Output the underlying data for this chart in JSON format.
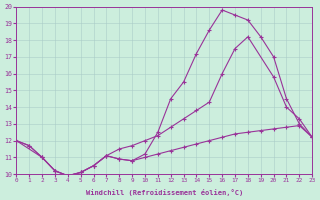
{
  "xlabel": "Windchill (Refroidissement éolien,°C)",
  "bg_color": "#cceedd",
  "line_color": "#993399",
  "xlim": [
    0,
    23
  ],
  "ylim": [
    10,
    20
  ],
  "xticks": [
    0,
    1,
    2,
    3,
    4,
    5,
    6,
    7,
    8,
    9,
    10,
    11,
    12,
    13,
    14,
    15,
    16,
    17,
    18,
    19,
    20,
    21,
    22,
    23
  ],
  "yticks": [
    10,
    11,
    12,
    13,
    14,
    15,
    16,
    17,
    18,
    19,
    20
  ],
  "line1_x": [
    0,
    1,
    2,
    3,
    4,
    5,
    6,
    7,
    8,
    9,
    10,
    11,
    12,
    13,
    14,
    15,
    16,
    17,
    18,
    19,
    20,
    21,
    22,
    23
  ],
  "line1_y": [
    12.0,
    11.7,
    11.0,
    10.2,
    9.9,
    10.1,
    10.5,
    11.1,
    10.9,
    10.8,
    11.2,
    12.5,
    14.5,
    15.5,
    17.2,
    18.6,
    19.8,
    19.5,
    19.2,
    18.2,
    17.0,
    14.5,
    13.0,
    12.2
  ],
  "line2_x": [
    0,
    2,
    3,
    4,
    5,
    6,
    7,
    8,
    9,
    10,
    11,
    12,
    13,
    14,
    15,
    16,
    17,
    18,
    20,
    21,
    22,
    23
  ],
  "line2_y": [
    12.0,
    11.0,
    10.2,
    9.9,
    10.1,
    10.5,
    11.1,
    11.5,
    11.7,
    12.0,
    12.3,
    12.8,
    13.3,
    13.8,
    14.3,
    16.0,
    17.5,
    18.2,
    15.8,
    14.0,
    13.3,
    12.2
  ],
  "line3_x": [
    0,
    1,
    2,
    3,
    4,
    5,
    6,
    7,
    8,
    9,
    10,
    11,
    12,
    13,
    14,
    15,
    16,
    17,
    18,
    19,
    20,
    21,
    22,
    23
  ],
  "line3_y": [
    12.0,
    11.7,
    11.0,
    10.2,
    9.9,
    10.1,
    10.5,
    11.1,
    10.9,
    10.8,
    11.0,
    11.2,
    11.4,
    11.6,
    11.8,
    12.0,
    12.2,
    12.4,
    12.5,
    12.6,
    12.7,
    12.8,
    12.9,
    12.2
  ]
}
